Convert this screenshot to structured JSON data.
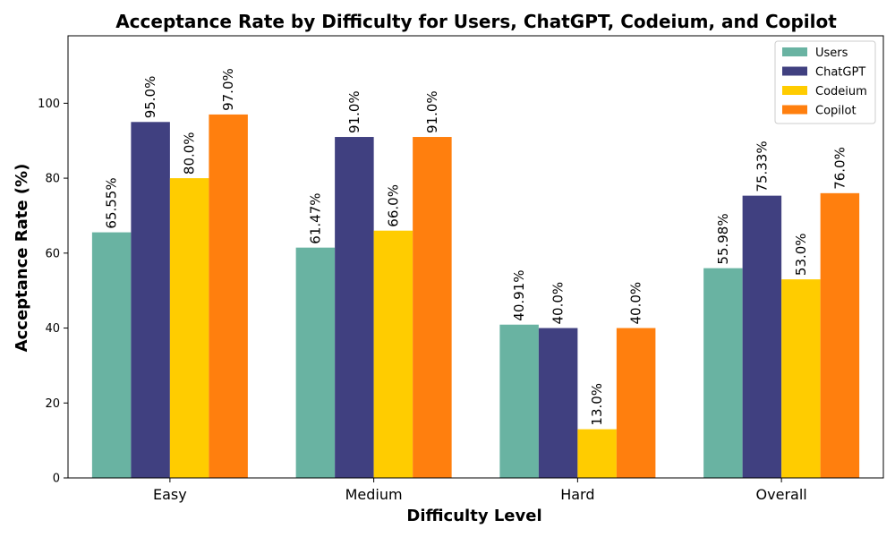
{
  "chart_data": {
    "type": "bar",
    "title": "Acceptance Rate by Difficulty for Users, ChatGPT, Codeium, and Copilot",
    "xlabel": "Difficulty Level",
    "ylabel": "Acceptance Rate (%)",
    "categories": [
      "Easy",
      "Medium",
      "Hard",
      "Overall"
    ],
    "ylim": [
      0,
      118
    ],
    "yticks": [
      "0",
      "20",
      "40",
      "60",
      "80",
      "100"
    ],
    "legend_position": "top-right",
    "grid": false,
    "series": [
      {
        "name": "Users",
        "color": "#69b3a2",
        "values": [
          65.55,
          61.47,
          40.91,
          55.98
        ],
        "labels": [
          "65.55%",
          "61.47%",
          "40.91%",
          "55.98%"
        ]
      },
      {
        "name": "ChatGPT",
        "color": "#404080",
        "values": [
          95.0,
          91.0,
          40.0,
          75.33
        ],
        "labels": [
          "95.0%",
          "91.0%",
          "40.0%",
          "75.33%"
        ]
      },
      {
        "name": "Codeium",
        "color": "#ffcc00",
        "values": [
          80.0,
          66.0,
          13.0,
          53.0
        ],
        "labels": [
          "80.0%",
          "66.0%",
          "13.0%",
          "53.0%"
        ]
      },
      {
        "name": "Copilot",
        "color": "#ff7f0e",
        "values": [
          97.0,
          91.0,
          40.0,
          76.0
        ],
        "labels": [
          "97.0%",
          "91.0%",
          "40.0%",
          "76.0%"
        ]
      }
    ]
  }
}
